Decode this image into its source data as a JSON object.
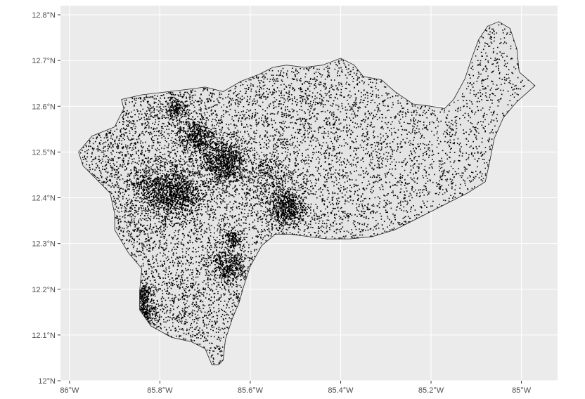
{
  "map": {
    "type": "scatter",
    "background_color": "#EBEBEB",
    "grid_color": "#FFFFFF",
    "point_color": "#000000",
    "region_fill": "#E4E4E4",
    "region_stroke": "#222222",
    "xlim": [
      -86.02,
      -84.92
    ],
    "ylim": [
      12.0,
      12.82
    ],
    "grid": true,
    "x_ticks": [
      {
        "value": -86.0,
        "label": "86°W"
      },
      {
        "value": -85.8,
        "label": "85.8°W"
      },
      {
        "value": -85.6,
        "label": "85.6°W"
      },
      {
        "value": -85.4,
        "label": "85.4°W"
      },
      {
        "value": -85.2,
        "label": "85.2°W"
      },
      {
        "value": -85.0,
        "label": "85°W"
      }
    ],
    "y_ticks": [
      {
        "value": 12.0,
        "label": "12°N"
      },
      {
        "value": 12.1,
        "label": "12.1°N"
      },
      {
        "value": 12.2,
        "label": "12.2°N"
      },
      {
        "value": 12.3,
        "label": "12.3°N"
      },
      {
        "value": 12.4,
        "label": "12.4°N"
      },
      {
        "value": 12.5,
        "label": "12.5°N"
      },
      {
        "value": 12.6,
        "label": "12.6°N"
      },
      {
        "value": 12.7,
        "label": "12.7°N"
      },
      {
        "value": 12.8,
        "label": "12.8°N"
      }
    ],
    "boundary": [
      [
        -85.885,
        12.615
      ],
      [
        -85.84,
        12.625
      ],
      [
        -85.78,
        12.632
      ],
      [
        -85.73,
        12.638
      ],
      [
        -85.7,
        12.642
      ],
      [
        -85.66,
        12.632
      ],
      [
        -85.62,
        12.655
      ],
      [
        -85.58,
        12.67
      ],
      [
        -85.55,
        12.685
      ],
      [
        -85.52,
        12.69
      ],
      [
        -85.48,
        12.685
      ],
      [
        -85.44,
        12.69
      ],
      [
        -85.4,
        12.705
      ],
      [
        -85.37,
        12.69
      ],
      [
        -85.35,
        12.665
      ],
      [
        -85.31,
        12.658
      ],
      [
        -85.28,
        12.632
      ],
      [
        -85.24,
        12.605
      ],
      [
        -85.2,
        12.6
      ],
      [
        -85.17,
        12.595
      ],
      [
        -85.15,
        12.615
      ],
      [
        -85.125,
        12.66
      ],
      [
        -85.11,
        12.705
      ],
      [
        -85.095,
        12.745
      ],
      [
        -85.075,
        12.775
      ],
      [
        -85.05,
        12.785
      ],
      [
        -85.025,
        12.77
      ],
      [
        -85.01,
        12.725
      ],
      [
        -85.005,
        12.675
      ],
      [
        -84.97,
        12.645
      ],
      [
        -85.01,
        12.61
      ],
      [
        -85.04,
        12.575
      ],
      [
        -85.06,
        12.53
      ],
      [
        -85.07,
        12.48
      ],
      [
        -85.08,
        12.435
      ],
      [
        -85.12,
        12.41
      ],
      [
        -85.16,
        12.39
      ],
      [
        -85.22,
        12.36
      ],
      [
        -85.28,
        12.33
      ],
      [
        -85.33,
        12.315
      ],
      [
        -85.38,
        12.31
      ],
      [
        -85.43,
        12.31
      ],
      [
        -85.47,
        12.315
      ],
      [
        -85.51,
        12.32
      ],
      [
        -85.545,
        12.32
      ],
      [
        -85.575,
        12.295
      ],
      [
        -85.6,
        12.25
      ],
      [
        -85.615,
        12.205
      ],
      [
        -85.625,
        12.17
      ],
      [
        -85.64,
        12.135
      ],
      [
        -85.655,
        12.09
      ],
      [
        -85.66,
        12.045
      ],
      [
        -85.67,
        12.035
      ],
      [
        -85.685,
        12.035
      ],
      [
        -85.7,
        12.07
      ],
      [
        -85.73,
        12.085
      ],
      [
        -85.775,
        12.095
      ],
      [
        -85.82,
        12.12
      ],
      [
        -85.845,
        12.155
      ],
      [
        -85.845,
        12.195
      ],
      [
        -85.84,
        12.245
      ],
      [
        -85.87,
        12.28
      ],
      [
        -85.9,
        12.33
      ],
      [
        -85.9,
        12.365
      ],
      [
        -85.91,
        12.41
      ],
      [
        -85.94,
        12.44
      ],
      [
        -85.97,
        12.47
      ],
      [
        -85.98,
        12.5
      ],
      [
        -85.95,
        12.535
      ],
      [
        -85.9,
        12.555
      ],
      [
        -85.88,
        12.595
      ]
    ],
    "clusters": [
      {
        "lon": -85.66,
        "lat": 12.48,
        "spread": 0.025,
        "weight": 0.07
      },
      {
        "lon": -85.8,
        "lat": 12.42,
        "spread": 0.03,
        "weight": 0.06
      },
      {
        "lon": -85.75,
        "lat": 12.41,
        "spread": 0.025,
        "weight": 0.04
      },
      {
        "lon": -85.52,
        "lat": 12.38,
        "spread": 0.022,
        "weight": 0.05
      },
      {
        "lon": -85.72,
        "lat": 12.535,
        "spread": 0.02,
        "weight": 0.035
      },
      {
        "lon": -85.765,
        "lat": 12.595,
        "spread": 0.012,
        "weight": 0.015
      },
      {
        "lon": -85.65,
        "lat": 12.25,
        "spread": 0.018,
        "weight": 0.03
      },
      {
        "lon": -85.84,
        "lat": 12.15,
        "spread": 0.015,
        "weight": 0.03
      },
      {
        "lon": -85.84,
        "lat": 12.19,
        "spread": 0.012,
        "weight": 0.015
      },
      {
        "lon": -85.56,
        "lat": 12.45,
        "spread": 0.03,
        "weight": 0.02
      },
      {
        "lon": -85.64,
        "lat": 12.31,
        "spread": 0.012,
        "weight": 0.012
      }
    ],
    "total_points": 13000
  }
}
